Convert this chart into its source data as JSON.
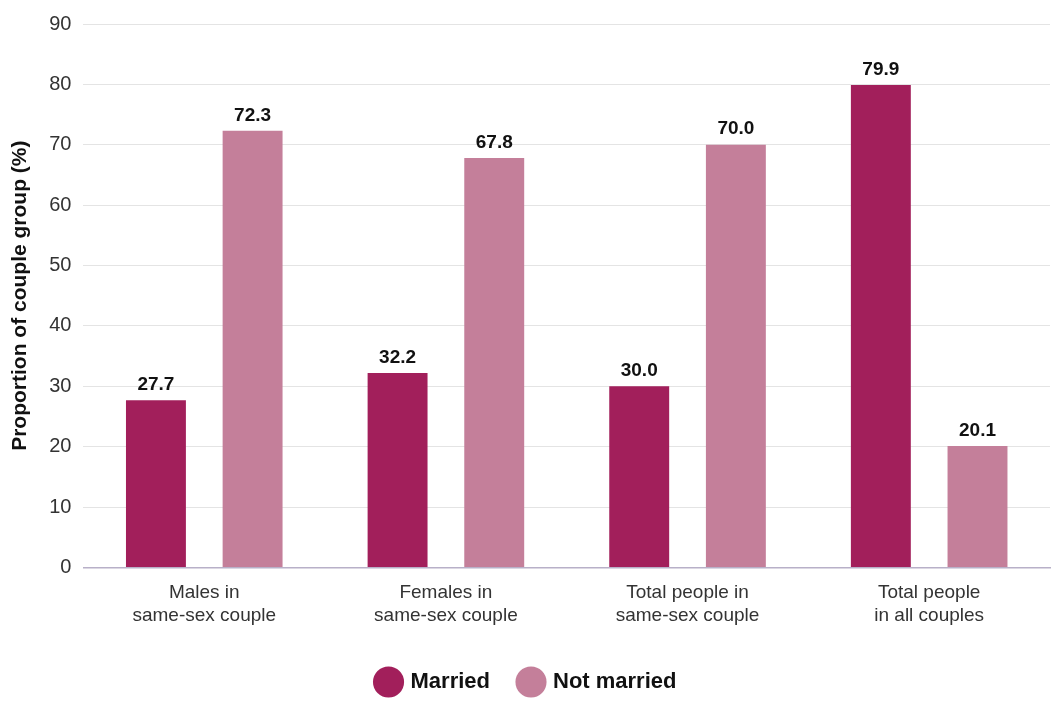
{
  "chart_data": {
    "type": "bar",
    "ylabel": "Proportion of couple group (%)",
    "categories": [
      "Males in\nsame-sex couple",
      "Females in\nsame-sex couple",
      "Total people in\nsame-sex couple",
      "Total people\nin all couples"
    ],
    "series": [
      {
        "name": "Married",
        "color": "#a21f5b",
        "values": [
          27.7,
          32.2,
          30.0,
          79.9
        ],
        "value_labels": [
          "27.7",
          "32.2",
          "30.0",
          "79.9"
        ]
      },
      {
        "name": "Not married",
        "color": "#c47f9a",
        "values": [
          72.3,
          67.8,
          70.0,
          20.1
        ],
        "value_labels": [
          "72.3",
          "67.8",
          "70.0",
          "20.1"
        ]
      }
    ],
    "ylim": [
      0,
      90
    ],
    "yticks": [
      0,
      10,
      20,
      30,
      40,
      50,
      60,
      70,
      80,
      90
    ],
    "grid": "y",
    "legend": "bottom"
  }
}
